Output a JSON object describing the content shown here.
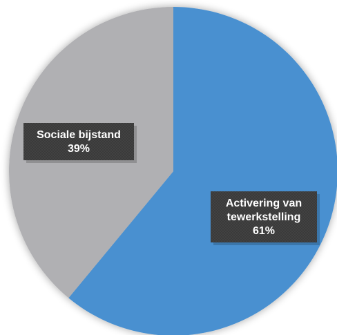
{
  "chart_data": {
    "type": "pie",
    "title": "",
    "slices": [
      {
        "label": "Activering van tewerkstelling",
        "label_lines": [
          "Activering van",
          "tewerkstelling"
        ],
        "percent_label": "61%",
        "value": 61,
        "color": "#4a90d0"
      },
      {
        "label": "Sociale bijstand",
        "label_lines": [
          "Sociale bijstand"
        ],
        "percent_label": "39%",
        "value": 39,
        "color": "#b0b0b3"
      }
    ],
    "legend": "none",
    "start_angle_deg": 0,
    "direction": "clockwise"
  }
}
